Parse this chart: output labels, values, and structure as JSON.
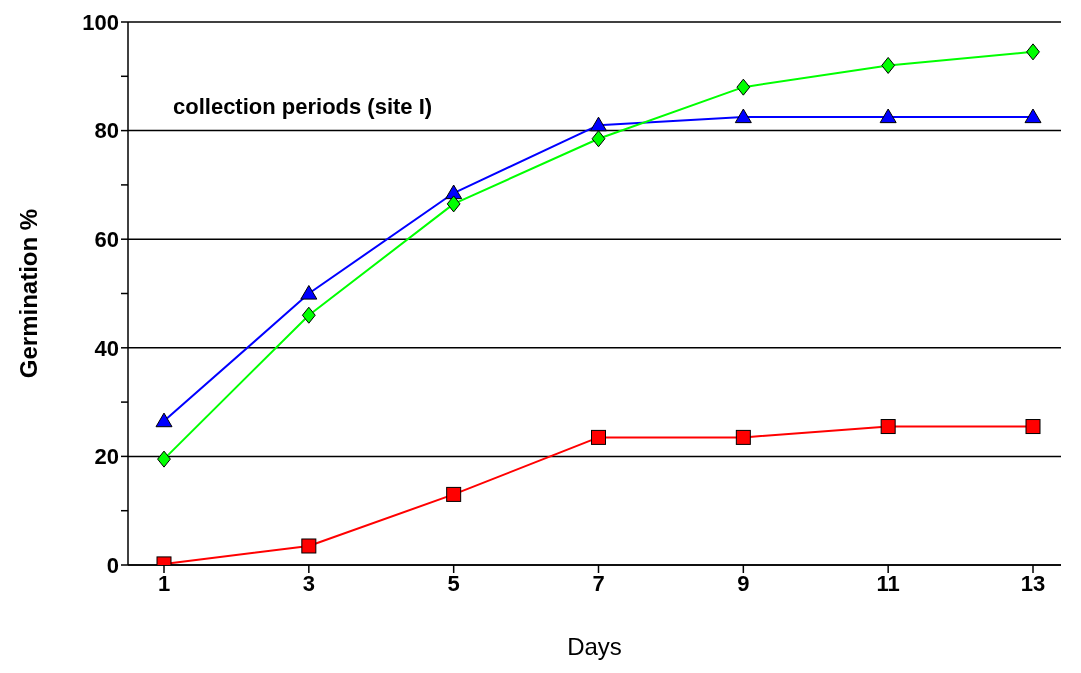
{
  "chart_data": {
    "type": "line",
    "xlabel": "Days",
    "ylabel": "Germination %",
    "annotations": [
      "collection periods (site I)"
    ],
    "categories": [
      "1",
      "3",
      "5",
      "7",
      "9",
      "11",
      "13"
    ],
    "series": [
      {
        "color": "#0000ff",
        "marker": "triangle",
        "values": [
          26.5,
          50,
          68.5,
          81,
          82.5,
          82.5,
          82.5
        ]
      },
      {
        "color": "#00ff00",
        "marker": "diamond",
        "values": [
          19.5,
          46,
          66.5,
          78.5,
          88,
          92,
          94.5
        ]
      },
      {
        "color": "#ff0000",
        "marker": "square",
        "values": [
          0.2,
          3.5,
          13,
          23.5,
          23.5,
          25.5,
          25.5
        ]
      }
    ],
    "ylim": [
      0,
      100
    ],
    "yticks": [
      0,
      {
        "value": 10,
        "label": null
      },
      20,
      {
        "value": 30,
        "label": null
      },
      40,
      {
        "value": 50,
        "label": null
      },
      60,
      {
        "value": 70,
        "label": null
      },
      80,
      {
        "value": 90,
        "label": null
      },
      100
    ],
    "grid": "y",
    "legend": false,
    "line_style": "solid"
  }
}
